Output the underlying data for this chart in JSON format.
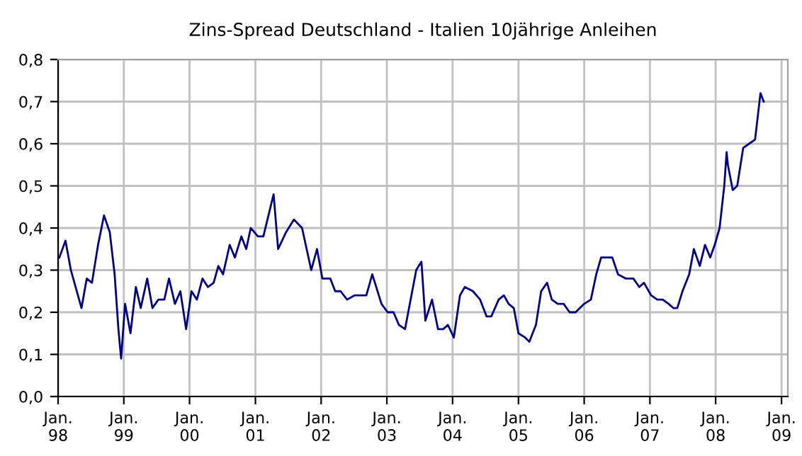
{
  "chart_data": {
    "type": "line",
    "title": "Zins-Spread Deutschland - Italien 10jährige Anleihen",
    "x": [
      "1998-01-08",
      "1998-02-11",
      "1998-03-13",
      "1998-05-11",
      "1998-06-09",
      "1998-07-08",
      "1998-08-11",
      "1998-09-13",
      "1998-10-15",
      "1998-11-11",
      "1998-12-02",
      "1998-12-17",
      "1999-01-08",
      "1999-02-07",
      "1999-03-09",
      "1999-04-05",
      "1999-05-11",
      "1999-06-09",
      "1999-07-12",
      "1999-08-14",
      "1999-09-09",
      "1999-10-12",
      "1999-11-11",
      "1999-12-13",
      "2000-01-12",
      "2000-02-11",
      "2000-03-13",
      "2000-04-12",
      "2000-05-14",
      "2000-06-09",
      "2000-07-05",
      "2000-08-11",
      "2000-09-09",
      "2000-10-15",
      "2000-11-11",
      "2000-12-06",
      "2001-01-15",
      "2001-02-14",
      "2001-04-12",
      "2001-05-07",
      "2001-06-20",
      "2001-08-03",
      "2001-09-17",
      "2001-11-07",
      "2001-12-09",
      "2002-01-08",
      "2002-02-21",
      "2002-03-20",
      "2002-04-19",
      "2002-05-25",
      "2002-07-05",
      "2002-09-09",
      "2002-10-12",
      "2002-12-02",
      "2003-01-05",
      "2003-02-07",
      "2003-03-09",
      "2003-04-12",
      "2003-06-13",
      "2003-07-12",
      "2003-08-03",
      "2003-09-09",
      "2003-10-12",
      "2003-11-11",
      "2003-12-06",
      "2004-01-08",
      "2004-02-11",
      "2004-03-09",
      "2004-04-23",
      "2004-06-02",
      "2004-07-08",
      "2004-08-03",
      "2004-09-13",
      "2004-10-12",
      "2004-11-07",
      "2004-12-06",
      "2005-01-01",
      "2005-02-07",
      "2005-03-02",
      "2005-04-08",
      "2005-05-07",
      "2005-06-09",
      "2005-07-05",
      "2005-08-07",
      "2005-09-09",
      "2005-10-12",
      "2005-11-14",
      "2006-01-01",
      "2006-02-07",
      "2006-03-09",
      "2006-04-05",
      "2006-05-07",
      "2006-06-06",
      "2006-07-08",
      "2006-08-21",
      "2006-10-01",
      "2006-11-03",
      "2006-11-29",
      "2007-01-08",
      "2007-02-11",
      "2007-03-13",
      "2007-04-15",
      "2007-05-11",
      "2007-06-02",
      "2007-07-01",
      "2007-08-07",
      "2007-09-02",
      "2007-10-05",
      "2007-11-03",
      "2007-12-02",
      "2007-12-27",
      "2008-01-23",
      "2008-02-18",
      "2008-03-02",
      "2008-03-09",
      "2008-04-05",
      "2008-04-30",
      "2008-06-02",
      "2008-07-05",
      "2008-08-07",
      "2008-09-06",
      "2008-09-24"
    ],
    "series": [
      {
        "color": "#000080",
        "values": [
          0.33,
          0.37,
          0.3,
          0.21,
          0.28,
          0.27,
          0.36,
          0.43,
          0.39,
          0.29,
          0.16,
          0.09,
          0.22,
          0.15,
          0.26,
          0.21,
          0.28,
          0.21,
          0.23,
          0.23,
          0.28,
          0.22,
          0.25,
          0.16,
          0.25,
          0.23,
          0.28,
          0.26,
          0.27,
          0.31,
          0.29,
          0.36,
          0.33,
          0.38,
          0.35,
          0.4,
          0.38,
          0.38,
          0.48,
          0.35,
          0.39,
          0.42,
          0.4,
          0.3,
          0.35,
          0.28,
          0.28,
          0.25,
          0.25,
          0.23,
          0.24,
          0.24,
          0.29,
          0.22,
          0.2,
          0.2,
          0.17,
          0.16,
          0.3,
          0.32,
          0.18,
          0.23,
          0.16,
          0.16,
          0.17,
          0.14,
          0.24,
          0.26,
          0.25,
          0.23,
          0.19,
          0.19,
          0.23,
          0.24,
          0.22,
          0.21,
          0.15,
          0.14,
          0.13,
          0.17,
          0.25,
          0.27,
          0.23,
          0.22,
          0.22,
          0.2,
          0.2,
          0.22,
          0.23,
          0.29,
          0.33,
          0.33,
          0.33,
          0.29,
          0.28,
          0.28,
          0.26,
          0.27,
          0.24,
          0.23,
          0.23,
          0.22,
          0.21,
          0.21,
          0.25,
          0.29,
          0.35,
          0.31,
          0.36,
          0.33,
          0.36,
          0.4,
          0.5,
          0.58,
          0.55,
          0.49,
          0.5,
          0.59,
          0.6,
          0.61,
          0.72,
          0.7
        ]
      }
    ],
    "xlim": [
      "1998-01-01",
      "2009-02-05"
    ],
    "xticks": [
      {
        "value": "1998-01",
        "label": "Jan.\n98"
      },
      {
        "value": "1999-01",
        "label": "Jan.\n99"
      },
      {
        "value": "2000-01",
        "label": "Jan.\n00"
      },
      {
        "value": "2001-01",
        "label": "Jan.\n01"
      },
      {
        "value": "2002-01",
        "label": "Jan.\n02"
      },
      {
        "value": "2003-01",
        "label": "Jan.\n03"
      },
      {
        "value": "2004-01",
        "label": "Jan.\n04"
      },
      {
        "value": "2005-01",
        "label": "Jan.\n05"
      },
      {
        "value": "2006-01",
        "label": "Jan.\n06"
      },
      {
        "value": "2007-01",
        "label": "Jan.\n07"
      },
      {
        "value": "2008-01",
        "label": "Jan.\n08"
      },
      {
        "value": "2009-01",
        "label": "Jan.\n09"
      }
    ],
    "ylim": [
      0,
      0.8
    ],
    "yticks": [
      {
        "value": 0,
        "label": "0,0"
      },
      {
        "value": 0.1,
        "label": "0,1"
      },
      {
        "value": 0.2,
        "label": "0,2"
      },
      {
        "value": 0.3,
        "label": "0,3"
      },
      {
        "value": 0.4,
        "label": "0,4"
      },
      {
        "value": 0.5,
        "label": "0,5"
      },
      {
        "value": 0.6,
        "label": "0,6"
      },
      {
        "value": 0.7,
        "label": "0,7"
      },
      {
        "value": 0.8,
        "label": "0,8"
      }
    ],
    "grid": true,
    "marker": "none",
    "line_style": "solid"
  }
}
